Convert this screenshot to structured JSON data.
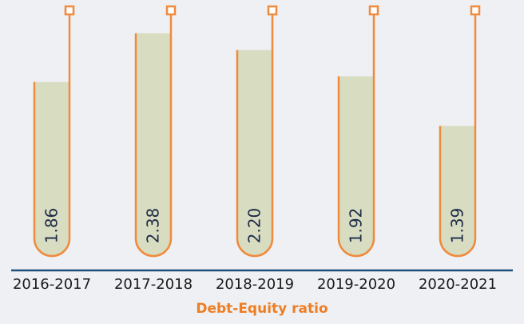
{
  "chart_data": {
    "type": "bar",
    "title": "Debt-Equity ratio",
    "categories": [
      "2016-2017",
      "2017-2018",
      "2018-2019",
      "2019-2020",
      "2020-2021"
    ],
    "values": [
      1.86,
      2.38,
      2.2,
      1.92,
      1.39
    ],
    "value_labels": [
      "1.86",
      "2.38",
      "2.20",
      "1.92",
      "1.39"
    ],
    "color": "#d8dcc0"
  }
}
